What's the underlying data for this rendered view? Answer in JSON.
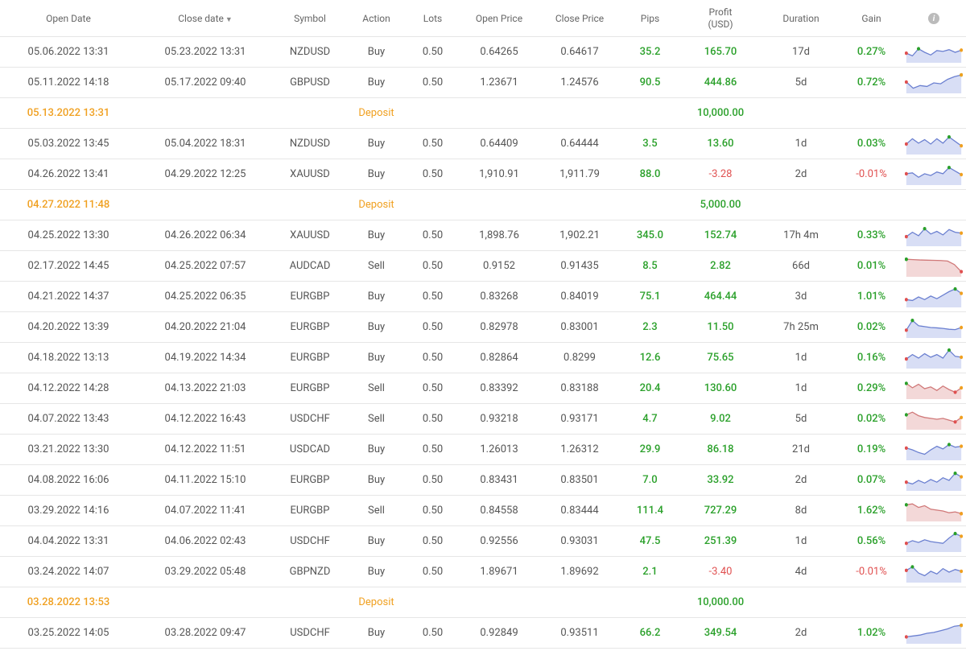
{
  "colors": {
    "positive": "#2aa02a",
    "negative": "#e05050",
    "depositText": "#f0a020",
    "text": "#555555",
    "border": "#e6e6e6",
    "sparkBuyFill": "#d8def5",
    "sparkBuyLine": "#6a7fd0",
    "sparkSellFill": "#f3d8d8",
    "sparkSellLine": "#d07878",
    "sparkDotGreen": "#2aa02a",
    "sparkDotRed": "#e05050",
    "sparkDotOrange": "#f0a020"
  },
  "columns": [
    {
      "key": "openDate",
      "label": "Open Date"
    },
    {
      "key": "closeDate",
      "label": "Close date",
      "sorted": true
    },
    {
      "key": "symbol",
      "label": "Symbol"
    },
    {
      "key": "action",
      "label": "Action"
    },
    {
      "key": "lots",
      "label": "Lots"
    },
    {
      "key": "openPrice",
      "label": "Open Price"
    },
    {
      "key": "closePrice",
      "label": "Close Price"
    },
    {
      "key": "pips",
      "label": "Pips"
    },
    {
      "key": "profit",
      "label": "Profit (USD)",
      "twoLine": true,
      "line1": "Profit",
      "line2": "(USD)"
    },
    {
      "key": "duration",
      "label": "Duration"
    },
    {
      "key": "gain",
      "label": "Gain"
    },
    {
      "key": "chart",
      "label": "",
      "info": true
    }
  ],
  "rows": [
    {
      "type": "trade",
      "openDate": "05.06.2022 13:31",
      "closeDate": "05.23.2022 13:31",
      "symbol": "NZDUSD",
      "action": "Buy",
      "lots": "0.50",
      "openPrice": "0.64265",
      "closePrice": "0.64617",
      "pips": "35.2",
      "profit": "165.70",
      "profitSign": "pos",
      "duration": "17d",
      "gain": "0.27%",
      "gainSign": "pos",
      "spark": {
        "style": "buy",
        "pts": [
          0.45,
          0.3,
          0.7,
          0.5,
          0.35,
          0.6,
          0.55,
          0.65,
          0.5,
          0.62
        ],
        "startDot": "red",
        "endDot": "orange",
        "peakDot": "green",
        "peakIndex": 2
      }
    },
    {
      "type": "trade",
      "openDate": "05.11.2022 14:18",
      "closeDate": "05.17.2022 09:40",
      "symbol": "GBPUSD",
      "action": "Buy",
      "lots": "0.50",
      "openPrice": "1.23671",
      "closePrice": "1.24576",
      "pips": "90.5",
      "profit": "444.86",
      "profitSign": "pos",
      "duration": "5d",
      "gain": "0.72%",
      "gainSign": "pos",
      "spark": {
        "style": "buy",
        "pts": [
          0.55,
          0.2,
          0.35,
          0.3,
          0.5,
          0.45,
          0.7,
          0.85,
          0.95
        ],
        "startDot": "red",
        "endDot": "orange",
        "peakDot": "green",
        "peakIndex": 8
      }
    },
    {
      "type": "deposit",
      "openDate": "05.13.2022 13:31",
      "label": "Deposit",
      "amount": "10,000.00"
    },
    {
      "type": "trade",
      "openDate": "05.03.2022 13:45",
      "closeDate": "05.04.2022 18:31",
      "symbol": "NZDUSD",
      "action": "Buy",
      "lots": "0.50",
      "openPrice": "0.64409",
      "closePrice": "0.64444",
      "pips": "3.5",
      "profit": "13.60",
      "profitSign": "pos",
      "duration": "1d",
      "gain": "0.03%",
      "gainSign": "pos",
      "spark": {
        "style": "buy",
        "pts": [
          0.5,
          0.8,
          0.55,
          0.75,
          0.5,
          0.8,
          0.55,
          0.9,
          0.65,
          0.4
        ],
        "startDot": "red",
        "endDot": "orange",
        "peakDot": "green",
        "peakIndex": 7
      }
    },
    {
      "type": "trade",
      "openDate": "04.26.2022 13:41",
      "closeDate": "04.29.2022 12:25",
      "symbol": "XAUUSD",
      "action": "Buy",
      "lots": "0.50",
      "openPrice": "1,910.91",
      "closePrice": "1,911.79",
      "pips": "88.0",
      "profit": "-3.28",
      "profitSign": "neg",
      "duration": "2d",
      "gain": "-0.01%",
      "gainSign": "neg",
      "spark": {
        "style": "buy",
        "pts": [
          0.55,
          0.6,
          0.35,
          0.55,
          0.45,
          0.65,
          0.55,
          0.9,
          0.7,
          0.5
        ],
        "startDot": "red",
        "endDot": "orange",
        "peakDot": "green",
        "peakIndex": 7
      }
    },
    {
      "type": "deposit",
      "openDate": "04.27.2022 11:48",
      "label": "Deposit",
      "amount": "5,000.00"
    },
    {
      "type": "trade",
      "openDate": "04.25.2022 13:30",
      "closeDate": "04.26.2022 06:34",
      "symbol": "XAUUSD",
      "action": "Buy",
      "lots": "0.50",
      "openPrice": "1,898.76",
      "closePrice": "1,902.21",
      "pips": "345.0",
      "profit": "152.74",
      "profitSign": "pos",
      "duration": "17h 4m",
      "gain": "0.33%",
      "gainSign": "pos",
      "spark": {
        "style": "buy",
        "pts": [
          0.45,
          0.7,
          0.5,
          0.9,
          0.6,
          0.75,
          0.55,
          0.85,
          0.7,
          0.65
        ],
        "startDot": "red",
        "endDot": "orange",
        "peakDot": "green",
        "peakIndex": 3
      }
    },
    {
      "type": "trade",
      "openDate": "02.17.2022 14:45",
      "closeDate": "04.25.2022 07:57",
      "symbol": "AUDCAD",
      "action": "Sell",
      "lots": "0.50",
      "openPrice": "0.9152",
      "closePrice": "0.91435",
      "pips": "8.5",
      "profit": "2.82",
      "profitSign": "pos",
      "duration": "66d",
      "gain": "0.01%",
      "gainSign": "pos",
      "spark": {
        "style": "sell",
        "pts": [
          0.9,
          0.88,
          0.86,
          0.85,
          0.84,
          0.83,
          0.8,
          0.6,
          0.2
        ],
        "startDot": "green",
        "endDot": "red",
        "peakDot": "green",
        "peakIndex": 0
      }
    },
    {
      "type": "trade",
      "openDate": "04.21.2022 14:37",
      "closeDate": "04.25.2022 06:35",
      "symbol": "EURGBP",
      "action": "Buy",
      "lots": "0.50",
      "openPrice": "0.83268",
      "closePrice": "0.84019",
      "pips": "75.1",
      "profit": "464.44",
      "profitSign": "pos",
      "duration": "3d",
      "gain": "1.01%",
      "gainSign": "pos",
      "spark": {
        "style": "buy",
        "pts": [
          0.35,
          0.3,
          0.5,
          0.35,
          0.55,
          0.4,
          0.6,
          0.8,
          0.95,
          0.7
        ],
        "startDot": "red",
        "endDot": "orange",
        "peakDot": "green",
        "peakIndex": 8
      }
    },
    {
      "type": "trade",
      "openDate": "04.20.2022 13:39",
      "closeDate": "04.20.2022 21:04",
      "symbol": "EURGBP",
      "action": "Buy",
      "lots": "0.50",
      "openPrice": "0.82978",
      "closePrice": "0.83001",
      "pips": "2.3",
      "profit": "11.50",
      "profitSign": "pos",
      "duration": "7h 25m",
      "gain": "0.02%",
      "gainSign": "pos",
      "spark": {
        "style": "buy",
        "pts": [
          0.35,
          0.9,
          0.6,
          0.55,
          0.5,
          0.48,
          0.45,
          0.4,
          0.38,
          0.5
        ],
        "startDot": "red",
        "endDot": "orange",
        "peakDot": "green",
        "peakIndex": 1
      }
    },
    {
      "type": "trade",
      "openDate": "04.18.2022 13:13",
      "closeDate": "04.19.2022 14:34",
      "symbol": "EURGBP",
      "action": "Buy",
      "lots": "0.50",
      "openPrice": "0.82864",
      "closePrice": "0.8299",
      "pips": "12.6",
      "profit": "75.65",
      "profitSign": "pos",
      "duration": "1d",
      "gain": "0.16%",
      "gainSign": "pos",
      "spark": {
        "style": "buy",
        "pts": [
          0.45,
          0.7,
          0.5,
          0.75,
          0.55,
          0.7,
          0.5,
          0.95,
          0.6,
          0.55
        ],
        "startDot": "red",
        "endDot": "orange",
        "peakDot": "green",
        "peakIndex": 7
      }
    },
    {
      "type": "trade",
      "openDate": "04.12.2022 14:28",
      "closeDate": "04.13.2022 21:03",
      "symbol": "EURGBP",
      "action": "Sell",
      "lots": "0.50",
      "openPrice": "0.83392",
      "closePrice": "0.83188",
      "pips": "20.4",
      "profit": "130.60",
      "profitSign": "pos",
      "duration": "1d",
      "gain": "0.29%",
      "gainSign": "pos",
      "spark": {
        "style": "sell",
        "pts": [
          0.8,
          0.55,
          0.75,
          0.5,
          0.6,
          0.4,
          0.65,
          0.45,
          0.3,
          0.55
        ],
        "startDot": "green",
        "endDot": "orange",
        "peakDot": "red",
        "peakIndex": 8
      }
    },
    {
      "type": "trade",
      "openDate": "04.07.2022 13:43",
      "closeDate": "04.12.2022 16:43",
      "symbol": "USDCHF",
      "action": "Sell",
      "lots": "0.50",
      "openPrice": "0.93218",
      "closePrice": "0.93171",
      "pips": "4.7",
      "profit": "9.02",
      "profitSign": "pos",
      "duration": "5d",
      "gain": "0.02%",
      "gainSign": "pos",
      "spark": {
        "style": "sell",
        "pts": [
          0.75,
          0.9,
          0.7,
          0.6,
          0.55,
          0.5,
          0.55,
          0.45,
          0.35,
          0.6
        ],
        "startDot": "green",
        "endDot": "orange",
        "peakDot": "red",
        "peakIndex": 8
      }
    },
    {
      "type": "trade",
      "openDate": "03.21.2022 13:30",
      "closeDate": "04.12.2022 11:51",
      "symbol": "USDCAD",
      "action": "Buy",
      "lots": "0.50",
      "openPrice": "1.26013",
      "closePrice": "1.26312",
      "pips": "29.9",
      "profit": "86.18",
      "profitSign": "pos",
      "duration": "21d",
      "gain": "0.19%",
      "gainSign": "pos",
      "spark": {
        "style": "buy",
        "pts": [
          0.6,
          0.5,
          0.35,
          0.25,
          0.5,
          0.7,
          0.55,
          0.8,
          0.65,
          0.7
        ],
        "startDot": "red",
        "endDot": "orange",
        "peakDot": "green",
        "peakIndex": 7
      }
    },
    {
      "type": "trade",
      "openDate": "04.08.2022 16:06",
      "closeDate": "04.11.2022 15:10",
      "symbol": "EURGBP",
      "action": "Buy",
      "lots": "0.50",
      "openPrice": "0.83431",
      "closePrice": "0.83501",
      "pips": "7.0",
      "profit": "33.92",
      "profitSign": "pos",
      "duration": "2d",
      "gain": "0.07%",
      "gainSign": "pos",
      "spark": {
        "style": "buy",
        "pts": [
          0.4,
          0.3,
          0.5,
          0.35,
          0.55,
          0.4,
          0.65,
          0.5,
          0.9,
          0.7
        ],
        "startDot": "red",
        "endDot": "orange",
        "peakDot": "green",
        "peakIndex": 8
      }
    },
    {
      "type": "trade",
      "openDate": "03.29.2022 14:16",
      "closeDate": "04.07.2022 11:41",
      "symbol": "EURGBP",
      "action": "Sell",
      "lots": "0.50",
      "openPrice": "0.84558",
      "closePrice": "0.83444",
      "pips": "111.4",
      "profit": "727.29",
      "profitSign": "pos",
      "duration": "8d",
      "gain": "1.62%",
      "gainSign": "pos",
      "spark": {
        "style": "sell",
        "pts": [
          0.85,
          0.9,
          0.7,
          0.8,
          0.6,
          0.55,
          0.5,
          0.4,
          0.45,
          0.35
        ],
        "startDot": "green",
        "endDot": "orange",
        "peakDot": "red",
        "peakIndex": 9
      }
    },
    {
      "type": "trade",
      "openDate": "04.04.2022 13:31",
      "closeDate": "04.06.2022 02:43",
      "symbol": "USDCHF",
      "action": "Buy",
      "lots": "0.50",
      "openPrice": "0.92556",
      "closePrice": "0.93031",
      "pips": "47.5",
      "profit": "251.39",
      "profitSign": "pos",
      "duration": "1d",
      "gain": "0.56%",
      "gainSign": "pos",
      "spark": {
        "style": "buy",
        "pts": [
          0.4,
          0.55,
          0.45,
          0.6,
          0.5,
          0.45,
          0.4,
          0.7,
          0.95,
          0.8
        ],
        "startDot": "red",
        "endDot": "orange",
        "peakDot": "green",
        "peakIndex": 8
      }
    },
    {
      "type": "trade",
      "openDate": "03.24.2022 14:07",
      "closeDate": "03.29.2022 05:48",
      "symbol": "GBPNZD",
      "action": "Buy",
      "lots": "0.50",
      "openPrice": "1.89671",
      "closePrice": "1.89692",
      "pips": "2.1",
      "profit": "-3.40",
      "profitSign": "neg",
      "duration": "4d",
      "gain": "-0.01%",
      "gainSign": "neg",
      "spark": {
        "style": "buy",
        "pts": [
          0.6,
          0.8,
          0.45,
          0.3,
          0.55,
          0.4,
          0.7,
          0.5,
          0.65,
          0.55
        ],
        "startDot": "red",
        "endDot": "orange",
        "peakDot": "green",
        "peakIndex": 1
      }
    },
    {
      "type": "deposit",
      "openDate": "03.28.2022 13:53",
      "label": "Deposit",
      "amount": "10,000.00"
    },
    {
      "type": "trade",
      "openDate": "03.25.2022 14:05",
      "closeDate": "03.28.2022 09:47",
      "symbol": "USDCHF",
      "action": "Buy",
      "lots": "0.50",
      "openPrice": "0.92849",
      "closePrice": "0.93511",
      "pips": "66.2",
      "profit": "349.54",
      "profitSign": "pos",
      "duration": "2d",
      "gain": "1.02%",
      "gainSign": "pos",
      "spark": {
        "style": "buy",
        "pts": [
          0.3,
          0.35,
          0.4,
          0.5,
          0.55,
          0.65,
          0.75,
          0.9,
          0.95
        ],
        "startDot": "red",
        "endDot": "orange",
        "peakDot": "green",
        "peakIndex": 8
      }
    }
  ]
}
